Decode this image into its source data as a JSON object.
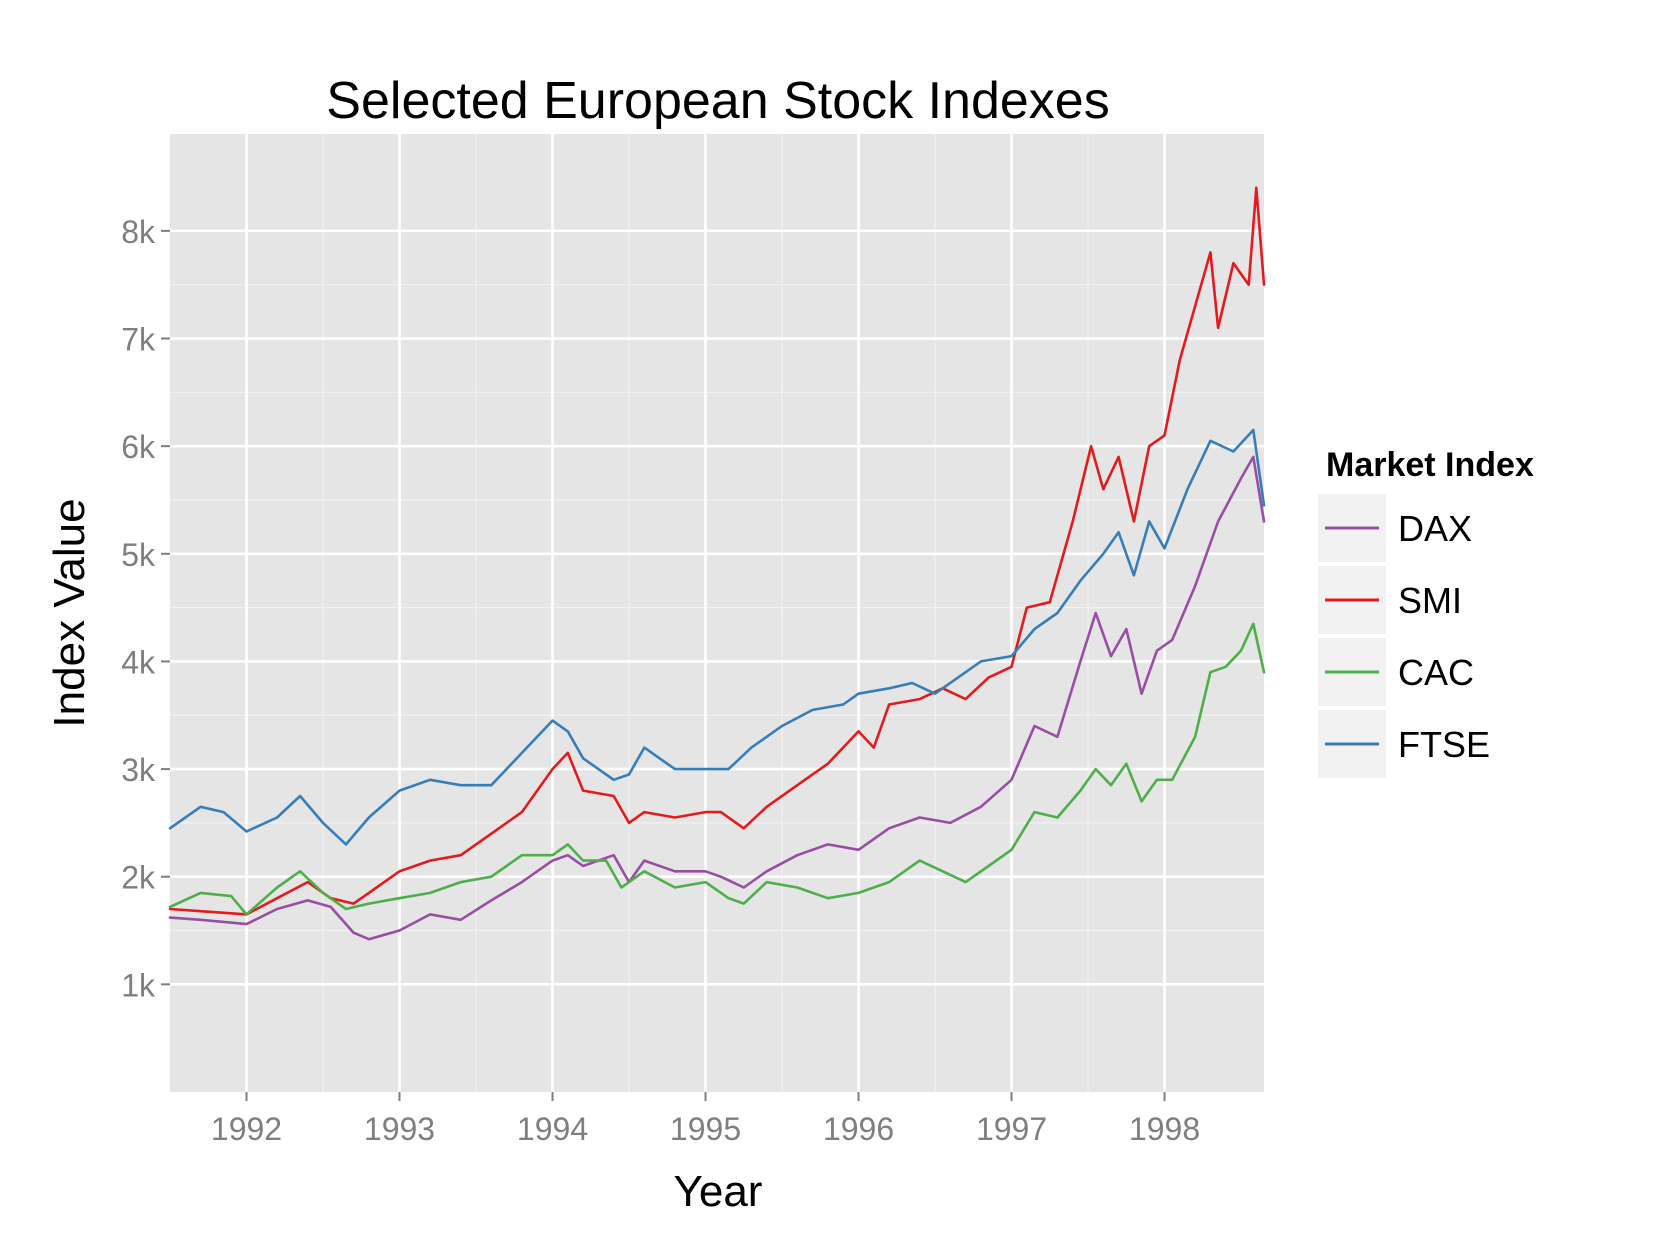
{
  "chart_data": {
    "type": "line",
    "title": "Selected European Stock Indexes",
    "xlabel": "Year",
    "ylabel": "Index Value",
    "xlim": [
      1991.5,
      1998.65
    ],
    "ylim": [
      0,
      8900
    ],
    "grid": true,
    "x_ticks": [
      1992,
      1993,
      1994,
      1995,
      1996,
      1997,
      1998
    ],
    "x_tick_labels": [
      "1992",
      "1993",
      "1994",
      "1995",
      "1996",
      "1997",
      "1998"
    ],
    "y_ticks": [
      1000,
      2000,
      3000,
      4000,
      5000,
      6000,
      7000,
      8000
    ],
    "y_tick_labels": [
      "1k",
      "2k",
      "3k",
      "4k",
      "5k",
      "6k",
      "7k",
      "8k"
    ],
    "legend": {
      "title": "Market Index",
      "placement": "right",
      "entries": [
        "DAX",
        "SMI",
        "CAC",
        "FTSE"
      ]
    },
    "series": [
      {
        "name": "DAX",
        "color": "#984ea3",
        "x": [
          1991.5,
          1991.7,
          1992.0,
          1992.2,
          1992.4,
          1992.55,
          1992.7,
          1992.8,
          1993.0,
          1993.2,
          1993.4,
          1993.6,
          1993.8,
          1994.0,
          1994.1,
          1994.2,
          1994.4,
          1994.5,
          1994.6,
          1994.8,
          1995.0,
          1995.1,
          1995.25,
          1995.4,
          1995.6,
          1995.8,
          1996.0,
          1996.2,
          1996.4,
          1996.6,
          1996.8,
          1997.0,
          1997.15,
          1997.3,
          1997.45,
          1997.55,
          1997.65,
          1997.75,
          1997.85,
          1997.95,
          1998.05,
          1998.2,
          1998.35,
          1998.5,
          1998.58,
          1998.65
        ],
        "y": [
          1620,
          1600,
          1560,
          1700,
          1780,
          1720,
          1480,
          1420,
          1500,
          1650,
          1600,
          1780,
          1950,
          2150,
          2200,
          2100,
          2200,
          1950,
          2150,
          2050,
          2050,
          2000,
          1900,
          2050,
          2200,
          2300,
          2250,
          2450,
          2550,
          2500,
          2650,
          2900,
          3400,
          3300,
          4000,
          4450,
          4050,
          4300,
          3700,
          4100,
          4200,
          4700,
          5300,
          5700,
          5900,
          5300
        ]
      },
      {
        "name": "SMI",
        "color": "#e41a1c",
        "x": [
          1991.5,
          1991.7,
          1991.9,
          1992.0,
          1992.2,
          1992.4,
          1992.55,
          1992.7,
          1992.8,
          1993.0,
          1993.2,
          1993.4,
          1993.6,
          1993.8,
          1994.0,
          1994.1,
          1994.2,
          1994.4,
          1994.5,
          1994.6,
          1994.8,
          1995.0,
          1995.1,
          1995.25,
          1995.4,
          1995.6,
          1995.8,
          1996.0,
          1996.1,
          1996.2,
          1996.4,
          1996.55,
          1996.7,
          1996.85,
          1997.0,
          1997.1,
          1997.25,
          1997.4,
          1997.52,
          1997.6,
          1997.7,
          1997.8,
          1997.9,
          1998.0,
          1998.1,
          1998.2,
          1998.3,
          1998.35,
          1998.45,
          1998.55,
          1998.6,
          1998.65
        ],
        "y": [
          1700,
          1680,
          1660,
          1650,
          1800,
          1950,
          1800,
          1750,
          1850,
          2050,
          2150,
          2200,
          2400,
          2600,
          3000,
          3150,
          2800,
          2750,
          2500,
          2600,
          2550,
          2600,
          2600,
          2450,
          2650,
          2850,
          3050,
          3350,
          3200,
          3600,
          3650,
          3750,
          3650,
          3850,
          3950,
          4500,
          4550,
          5300,
          6000,
          5600,
          5900,
          5300,
          6000,
          6100,
          6800,
          7300,
          7800,
          7100,
          7700,
          7500,
          8400,
          7500
        ]
      },
      {
        "name": "CAC",
        "color": "#4daf4a",
        "x": [
          1991.5,
          1991.7,
          1991.9,
          1992.0,
          1992.2,
          1992.35,
          1992.5,
          1992.65,
          1992.8,
          1993.0,
          1993.2,
          1993.4,
          1993.6,
          1993.8,
          1994.0,
          1994.1,
          1994.2,
          1994.35,
          1994.45,
          1994.6,
          1994.8,
          1995.0,
          1995.15,
          1995.25,
          1995.4,
          1995.6,
          1995.8,
          1996.0,
          1996.2,
          1996.4,
          1996.55,
          1996.7,
          1996.85,
          1997.0,
          1997.15,
          1997.3,
          1997.45,
          1997.55,
          1997.65,
          1997.75,
          1997.85,
          1997.95,
          1998.05,
          1998.2,
          1998.3,
          1998.4,
          1998.5,
          1998.58,
          1998.65
        ],
        "y": [
          1720,
          1850,
          1820,
          1650,
          1900,
          2050,
          1850,
          1700,
          1750,
          1800,
          1850,
          1950,
          2000,
          2200,
          2200,
          2300,
          2150,
          2150,
          1900,
          2050,
          1900,
          1950,
          1800,
          1750,
          1950,
          1900,
          1800,
          1850,
          1950,
          2150,
          2050,
          1950,
          2100,
          2250,
          2600,
          2550,
          2800,
          3000,
          2850,
          3050,
          2700,
          2900,
          2900,
          3300,
          3900,
          3950,
          4100,
          4350,
          3900
        ]
      },
      {
        "name": "FTSE",
        "color": "#377eb8",
        "x": [
          1991.5,
          1991.7,
          1991.85,
          1992.0,
          1992.2,
          1992.35,
          1992.5,
          1992.65,
          1992.8,
          1993.0,
          1993.2,
          1993.4,
          1993.6,
          1993.8,
          1994.0,
          1994.1,
          1994.2,
          1994.4,
          1994.5,
          1994.6,
          1994.8,
          1995.0,
          1995.15,
          1995.3,
          1995.5,
          1995.7,
          1995.9,
          1996.0,
          1996.2,
          1996.35,
          1996.5,
          1996.65,
          1996.8,
          1997.0,
          1997.15,
          1997.3,
          1997.45,
          1997.6,
          1997.7,
          1997.8,
          1997.9,
          1998.0,
          1998.15,
          1998.3,
          1998.45,
          1998.58,
          1998.65
        ],
        "y": [
          2450,
          2650,
          2600,
          2420,
          2550,
          2750,
          2500,
          2300,
          2550,
          2800,
          2900,
          2850,
          2850,
          3150,
          3450,
          3350,
          3100,
          2900,
          2950,
          3200,
          3000,
          3000,
          3000,
          3200,
          3400,
          3550,
          3600,
          3700,
          3750,
          3800,
          3700,
          3850,
          4000,
          4050,
          4300,
          4450,
          4750,
          5000,
          5200,
          4800,
          5300,
          5050,
          5600,
          6050,
          5950,
          6150,
          5450
        ]
      }
    ]
  }
}
